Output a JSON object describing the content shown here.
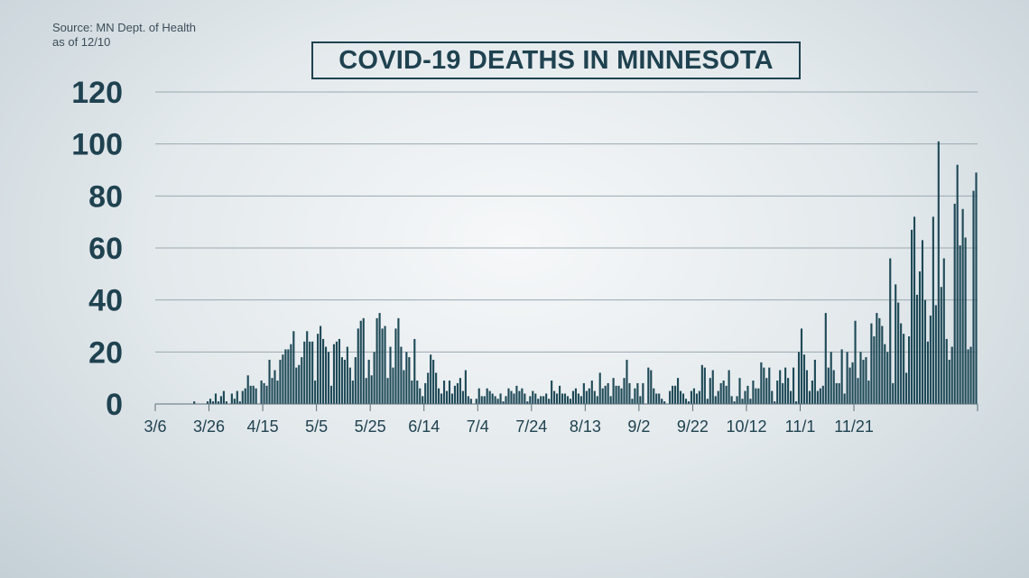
{
  "source": {
    "line1": "Source: MN Dept. of Health",
    "line2": "as of 12/10"
  },
  "colors": {
    "bar": "#1f4a58",
    "grid": "#9aa9b1",
    "text": "#1f4250"
  },
  "chart_data": {
    "type": "bar",
    "title": "COVID-19 DEATHS IN MINNESOTA",
    "xlabel": "",
    "ylabel": "",
    "ylim": [
      0,
      120
    ],
    "yticks": [
      0,
      20,
      40,
      60,
      80,
      100,
      120
    ],
    "grid": true,
    "x_tick_labels": [
      "3/6",
      "3/26",
      "4/15",
      "5/5",
      "5/25",
      "6/14",
      "7/4",
      "7/24",
      "8/13",
      "9/2",
      "9/22",
      "10/12",
      "11/1",
      "11/21"
    ],
    "start_date": "3/6",
    "values": [
      0,
      0,
      0,
      0,
      0,
      0,
      0,
      0,
      0,
      0,
      0,
      0,
      0,
      0,
      1,
      0,
      0,
      0,
      0,
      1,
      2,
      1,
      4,
      1,
      3,
      5,
      1,
      0,
      4,
      2,
      5,
      1,
      5,
      6,
      11,
      7,
      7,
      6,
      0,
      9,
      8,
      7,
      17,
      10,
      13,
      9,
      17,
      19,
      21,
      21,
      23,
      28,
      14,
      15,
      18,
      24,
      28,
      24,
      24,
      9,
      27,
      30,
      25,
      22,
      20,
      7,
      23,
      24,
      25,
      18,
      17,
      22,
      14,
      9,
      18,
      29,
      32,
      33,
      10,
      17,
      11,
      20,
      33,
      35,
      29,
      30,
      10,
      22,
      14,
      29,
      33,
      22,
      13,
      20,
      18,
      9,
      25,
      9,
      6,
      3,
      8,
      12,
      19,
      17,
      12,
      6,
      4,
      9,
      5,
      9,
      4,
      7,
      8,
      10,
      5,
      13,
      3,
      2,
      0,
      2,
      6,
      3,
      3,
      6,
      5,
      4,
      3,
      2,
      4,
      1,
      3,
      6,
      5,
      4,
      7,
      5,
      6,
      4,
      1,
      3,
      5,
      4,
      2,
      3,
      3,
      4,
      2,
      9,
      5,
      4,
      7,
      4,
      4,
      3,
      2,
      5,
      6,
      4,
      3,
      8,
      5,
      6,
      9,
      5,
      3,
      12,
      6,
      7,
      8,
      3,
      10,
      7,
      7,
      6,
      10,
      17,
      8,
      2,
      6,
      8,
      3,
      8,
      0,
      14,
      13,
      6,
      4,
      4,
      2,
      1,
      0,
      5,
      7,
      7,
      10,
      5,
      4,
      2,
      1,
      5,
      6,
      4,
      5,
      15,
      14,
      2,
      10,
      13,
      3,
      5,
      8,
      9,
      7,
      13,
      3,
      1,
      3,
      10,
      2,
      5,
      7,
      2,
      9,
      6,
      6,
      16,
      14,
      10,
      14,
      5,
      1,
      9,
      13,
      8,
      14,
      10,
      5,
      14,
      1,
      20,
      29,
      19,
      13,
      5,
      9,
      17,
      5,
      6,
      7,
      35,
      14,
      20,
      13,
      8,
      8,
      21,
      4,
      20,
      14,
      16,
      32,
      10,
      20,
      17,
      18,
      9,
      31,
      26,
      35,
      33,
      30,
      23,
      20,
      56,
      8,
      46,
      39,
      31,
      27,
      12,
      26,
      67,
      72,
      42,
      51,
      63,
      40,
      24,
      34,
      72,
      38,
      101,
      45,
      56,
      25,
      17,
      22,
      77,
      92,
      61,
      75,
      64,
      21,
      22,
      82,
      89
    ]
  }
}
